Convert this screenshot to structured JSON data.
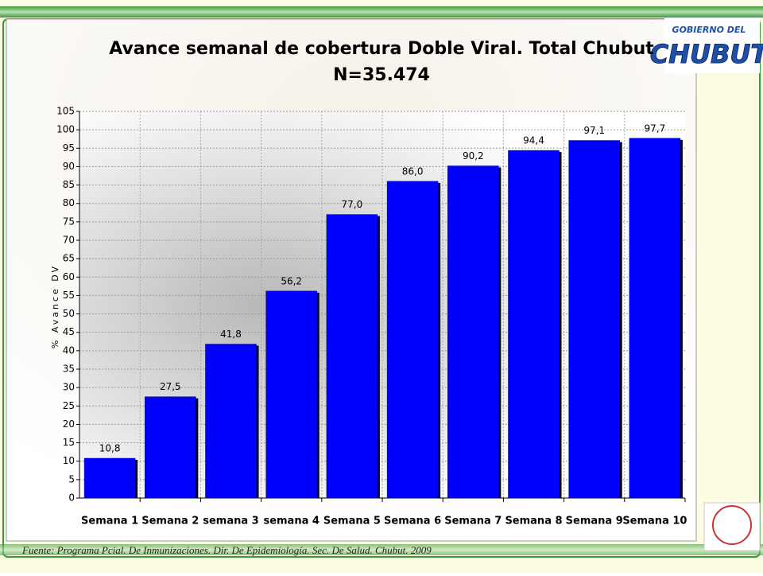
{
  "chart_data": {
    "type": "bar",
    "title": "Avance semanal de cobertura Doble Viral. Total Chubut",
    "subtitle": "N=35.474",
    "y_label": "% Avance DV",
    "source": "Fuente: Programa Pcial. De Inmunizaciones. Dir. De Epidemiología.  Sec. De Salud. Chubut. 2009",
    "categories": [
      "Semana 1",
      "Semana 2",
      "semana 3",
      "semana 4",
      "Semana 5",
      "Semana 6",
      "Semana 7",
      "Semana 8",
      "Semana 9",
      "Semana 10"
    ],
    "values": [
      10.8,
      27.5,
      41.8,
      56.2,
      77.0,
      86.0,
      90.2,
      94.4,
      97.1,
      97.7
    ],
    "value_labels": [
      "10,8",
      "27,5",
      "41,8",
      "56,2",
      "77,0",
      "86,0",
      "90,2",
      "94,4",
      "97,1",
      "97,7"
    ],
    "color": "#0000ff",
    "ylim": [
      0,
      105
    ],
    "yticks": [
      0,
      5,
      10,
      15,
      20,
      25,
      30,
      35,
      40,
      45,
      50,
      55,
      60,
      65,
      70,
      75,
      80,
      85,
      90,
      95,
      100,
      105
    ],
    "grid": true
  },
  "logo": {
    "top": "GOBIERNO DEL",
    "main": "CHUBUT"
  }
}
